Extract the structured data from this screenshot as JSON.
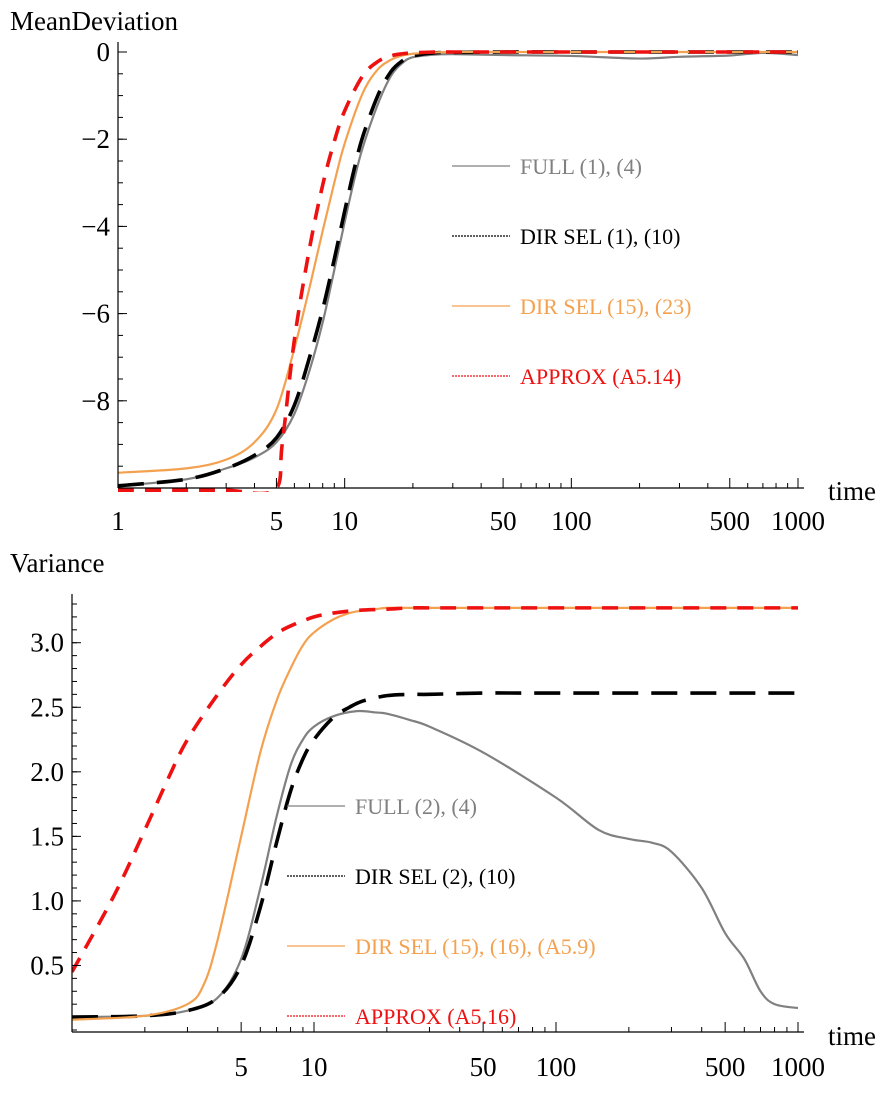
{
  "chart_data": [
    {
      "type": "line",
      "ylabel": "MeanDeviation",
      "xlabel": "time",
      "x_scale": "log",
      "xlim": [
        1,
        1000
      ],
      "ylim": [
        -10,
        0
      ],
      "x_ticks": [
        {
          "value": 1,
          "label": "1"
        },
        {
          "value": 5,
          "label": "5"
        },
        {
          "value": 10,
          "label": "10"
        },
        {
          "value": 50,
          "label": "50"
        },
        {
          "value": 100,
          "label": "100"
        },
        {
          "value": 500,
          "label": "500"
        },
        {
          "value": 1000,
          "label": "1000"
        }
      ],
      "y_ticks": [
        {
          "value": 0,
          "label": "0"
        },
        {
          "value": -2,
          "label": "−2"
        },
        {
          "value": -4,
          "label": "−4"
        },
        {
          "value": -6,
          "label": "−6"
        },
        {
          "value": -8,
          "label": "−8"
        }
      ],
      "grid": false,
      "legend_position": "right",
      "series": [
        {
          "name": "FULL (1), (4)",
          "color": "#808080",
          "dash": "solid",
          "x": [
            1,
            2,
            3,
            4,
            5,
            6,
            7,
            8,
            9,
            10,
            11,
            12,
            14,
            16,
            18,
            20,
            25,
            30,
            50,
            100,
            200,
            300,
            500,
            700,
            1000
          ],
          "y": [
            -9.95,
            -9.8,
            -9.55,
            -9.3,
            -8.95,
            -8.3,
            -7.3,
            -6.2,
            -5.0,
            -3.9,
            -2.95,
            -2.2,
            -1.2,
            -0.55,
            -0.25,
            -0.12,
            -0.06,
            -0.05,
            -0.07,
            -0.09,
            -0.15,
            -0.11,
            -0.08,
            -0.02,
            -0.07
          ]
        },
        {
          "name": "DIR SEL (1), (10)",
          "color": "#000000",
          "dash": "long",
          "x": [
            1,
            2,
            3,
            4,
            5,
            6,
            7,
            8,
            9,
            10,
            11,
            12,
            14,
            16,
            18,
            20,
            25,
            30,
            50,
            100,
            1000
          ],
          "y": [
            -9.95,
            -9.8,
            -9.55,
            -9.25,
            -8.85,
            -8.1,
            -7.0,
            -5.9,
            -4.75,
            -3.65,
            -2.7,
            -1.95,
            -1.0,
            -0.45,
            -0.2,
            -0.09,
            -0.02,
            -0.01,
            0,
            0,
            0
          ]
        },
        {
          "name": "DIR SEL (15), (23)",
          "color": "#F4A14F",
          "dash": "solid",
          "x": [
            1,
            2,
            3,
            4,
            5,
            6,
            7,
            8,
            9,
            10,
            12,
            14,
            16,
            18,
            20,
            25,
            30,
            50,
            100,
            1000
          ],
          "y": [
            -9.65,
            -9.55,
            -9.35,
            -8.95,
            -8.2,
            -6.8,
            -5.4,
            -4.1,
            -3.0,
            -2.1,
            -0.95,
            -0.4,
            -0.18,
            -0.08,
            -0.04,
            -0.01,
            0,
            0,
            0,
            0
          ]
        },
        {
          "name": "APPROX (A5.14)",
          "color": "#EE1111",
          "dash": "medium",
          "x": [
            1,
            2,
            3,
            4.9,
            5.3,
            6,
            7,
            8,
            9,
            10,
            12,
            14,
            16,
            18,
            20,
            25,
            30,
            50,
            100,
            1000
          ],
          "y": [
            -10.05,
            -10.05,
            -10.05,
            -10.05,
            -9.0,
            -6.6,
            -4.5,
            -3.05,
            -2.05,
            -1.35,
            -0.55,
            -0.22,
            -0.09,
            -0.04,
            -0.02,
            0,
            0,
            0,
            0,
            0
          ]
        }
      ]
    },
    {
      "type": "line",
      "ylabel": "Variance",
      "xlabel": "time",
      "x_scale": "log",
      "xlim": [
        1,
        1000
      ],
      "ylim": [
        0,
        3.3
      ],
      "x_ticks": [
        {
          "value": 5,
          "label": "5"
        },
        {
          "value": 10,
          "label": "10"
        },
        {
          "value": 50,
          "label": "50"
        },
        {
          "value": 100,
          "label": "100"
        },
        {
          "value": 500,
          "label": "500"
        },
        {
          "value": 1000,
          "label": "1000"
        }
      ],
      "y_ticks": [
        {
          "value": 0.5,
          "label": "0.5"
        },
        {
          "value": 1.0,
          "label": "1.0"
        },
        {
          "value": 1.5,
          "label": "1.5"
        },
        {
          "value": 2.0,
          "label": "2.0"
        },
        {
          "value": 2.5,
          "label": "2.5"
        },
        {
          "value": 3.0,
          "label": "3.0"
        }
      ],
      "grid": false,
      "legend_position": "center",
      "series": [
        {
          "name": "FULL (2), (4)",
          "color": "#808080",
          "dash": "solid",
          "x": [
            1,
            2,
            3,
            4,
            5,
            6,
            7,
            8,
            9,
            10,
            12,
            15,
            18,
            20,
            25,
            30,
            50,
            100,
            150,
            200,
            250,
            300,
            400,
            500,
            600,
            700,
            800,
            1000
          ],
          "y": [
            0.1,
            0.11,
            0.15,
            0.25,
            0.55,
            1.1,
            1.65,
            2.05,
            2.25,
            2.35,
            2.43,
            2.47,
            2.46,
            2.45,
            2.4,
            2.35,
            2.15,
            1.8,
            1.55,
            1.48,
            1.45,
            1.38,
            1.1,
            0.75,
            0.55,
            0.3,
            0.2,
            0.17
          ]
        },
        {
          "name": "DIR SEL (2), (10)",
          "color": "#000000",
          "dash": "long",
          "x": [
            1,
            2,
            3,
            4,
            5,
            6,
            7,
            8,
            9,
            10,
            12,
            14,
            16,
            20,
            25,
            30,
            50,
            100,
            1000
          ],
          "y": [
            0.1,
            0.11,
            0.15,
            0.25,
            0.5,
            0.95,
            1.45,
            1.85,
            2.1,
            2.25,
            2.42,
            2.5,
            2.55,
            2.59,
            2.6,
            2.6,
            2.61,
            2.61,
            2.61
          ]
        },
        {
          "name": "DIR SEL (15), (16), (A5.9)",
          "color": "#F4A14F",
          "dash": "solid",
          "x": [
            1,
            2,
            3,
            3.5,
            4,
            5,
            6,
            7,
            8,
            9,
            10,
            12,
            14,
            16,
            18,
            20,
            25,
            30,
            50,
            100,
            1000
          ],
          "y": [
            0.08,
            0.11,
            0.2,
            0.35,
            0.7,
            1.5,
            2.15,
            2.55,
            2.8,
            2.98,
            3.08,
            3.18,
            3.23,
            3.25,
            3.26,
            3.27,
            3.27,
            3.27,
            3.27,
            3.27,
            3.27
          ]
        },
        {
          "name": "APPROX (A5.16)",
          "color": "#EE1111",
          "dash": "medium",
          "x": [
            1,
            1.5,
            2,
            2.5,
            3,
            4,
            5,
            6,
            7,
            8,
            10,
            12,
            15,
            20,
            25,
            30,
            50,
            100,
            1000
          ],
          "y": [
            0.45,
            1.05,
            1.55,
            1.95,
            2.25,
            2.6,
            2.83,
            2.97,
            3.07,
            3.13,
            3.2,
            3.23,
            3.25,
            3.26,
            3.27,
            3.27,
            3.27,
            3.27,
            3.27
          ]
        }
      ]
    }
  ]
}
